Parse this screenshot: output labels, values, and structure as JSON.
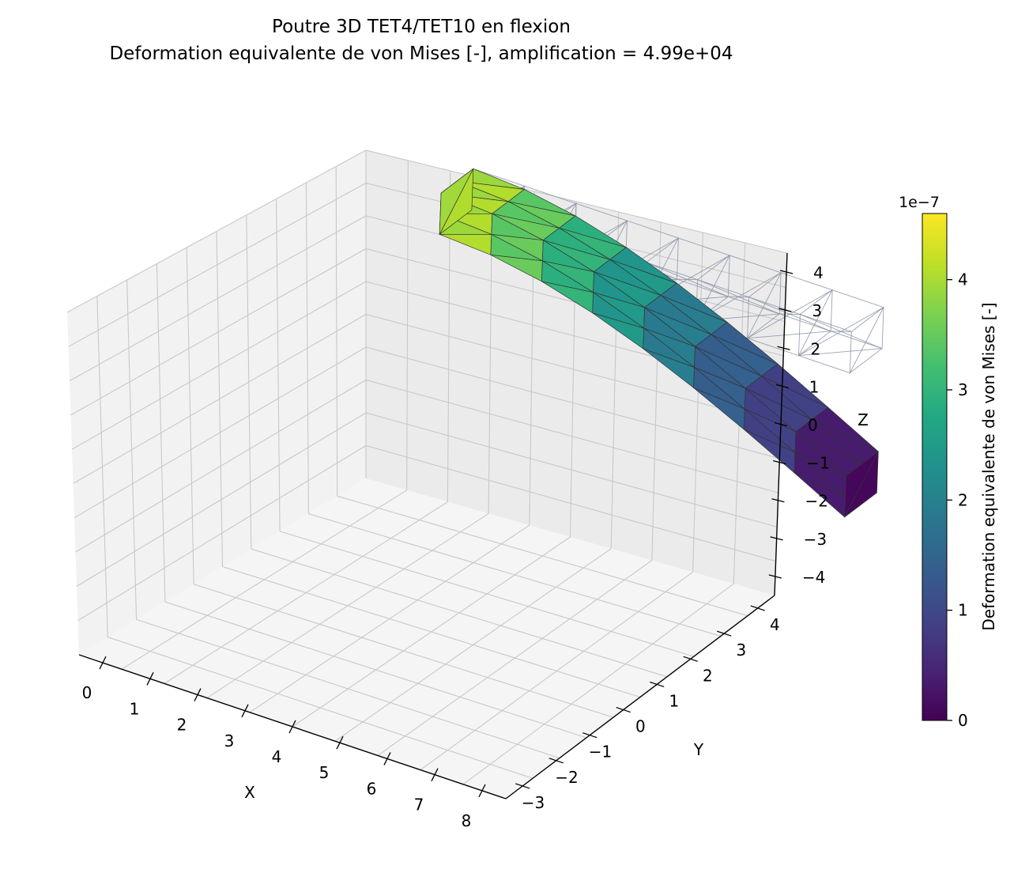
{
  "figure": {
    "title_line1": "Poutre 3D TET4/TET10 en flexion",
    "title_line2": "Deformation equivalente de von Mises [-], amplification = 4.99e+04"
  },
  "chart_data": {
    "type": "3d-mesh",
    "axes": {
      "x": {
        "label": "X",
        "ticks": [
          "0",
          "1",
          "2",
          "3",
          "4",
          "5",
          "6",
          "7",
          "8"
        ]
      },
      "y": {
        "label": "Y",
        "ticks": [
          "−3",
          "−2",
          "−1",
          "0",
          "1",
          "2",
          "3",
          "4"
        ]
      },
      "z": {
        "label": "Z",
        "ticks": [
          "−4",
          "−3",
          "−2",
          "−1",
          "0",
          "1",
          "2",
          "3",
          "4"
        ]
      }
    },
    "colorbar": {
      "label": "Deformation equivalente de von Mises [-]",
      "offset_text": "1e−7",
      "ticks": [
        "0",
        "1",
        "2",
        "3",
        "4"
      ],
      "range": [
        0,
        4.6
      ],
      "colormap": "viridis"
    },
    "beam": {
      "mesh": "tetrahedral",
      "undeformed_color": "#8a90a3",
      "strain_at_clamped_end": 4.5,
      "strain_at_free_end": 0.1
    },
    "colors": {
      "pane": "#f2f2f2",
      "grid": "#c8c8c8",
      "viridis": [
        "#440154",
        "#482475",
        "#414487",
        "#355f8d",
        "#2a788e",
        "#21918c",
        "#22a884",
        "#44bf70",
        "#7ad151",
        "#bddf26",
        "#fde725"
      ]
    }
  }
}
